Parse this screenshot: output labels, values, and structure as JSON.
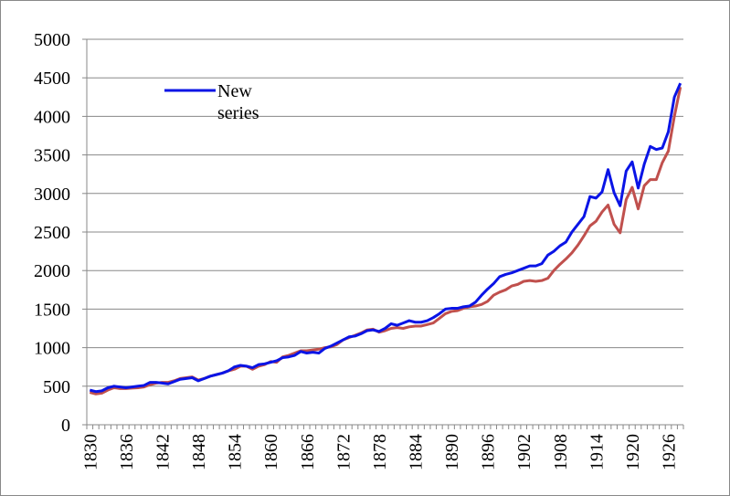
{
  "chart_data": {
    "type": "line",
    "categories": [
      "1830",
      null,
      null,
      null,
      null,
      null,
      "1836",
      null,
      null,
      null,
      null,
      null,
      "1842",
      null,
      null,
      null,
      null,
      null,
      "1848",
      null,
      null,
      null,
      null,
      null,
      "1854",
      null,
      null,
      null,
      null,
      null,
      "1860",
      null,
      null,
      null,
      null,
      null,
      "1866",
      null,
      null,
      null,
      null,
      null,
      "1872",
      null,
      null,
      null,
      null,
      null,
      "1878",
      null,
      null,
      null,
      null,
      null,
      "1884",
      null,
      null,
      null,
      null,
      null,
      "1890",
      null,
      null,
      null,
      null,
      null,
      "1896",
      null,
      null,
      null,
      null,
      null,
      "1902",
      null,
      null,
      null,
      null,
      null,
      "1908",
      null,
      null,
      null,
      null,
      null,
      "1914",
      null,
      null,
      null,
      null,
      null,
      "1920",
      null,
      null,
      null,
      null,
      null,
      "1926",
      null,
      null
    ],
    "series": [
      {
        "name": "New series",
        "color": "#0a14e6",
        "values": [
          450,
          430,
          440,
          480,
          500,
          490,
          480,
          490,
          500,
          510,
          550,
          550,
          540,
          530,
          560,
          590,
          600,
          610,
          570,
          600,
          630,
          650,
          670,
          700,
          750,
          770,
          760,
          740,
          780,
          790,
          810,
          830,
          870,
          880,
          900,
          950,
          930,
          940,
          930,
          990,
          1020,
          1060,
          1100,
          1140,
          1150,
          1180,
          1220,
          1230,
          1210,
          1250,
          1310,
          1290,
          1320,
          1350,
          1330,
          1330,
          1350,
          1390,
          1440,
          1500,
          1510,
          1510,
          1530,
          1540,
          1590,
          1680,
          1760,
          1830,
          1920,
          1950,
          1970,
          2000,
          2030,
          2060,
          2060,
          2090,
          2200,
          2250,
          2320,
          2370,
          2500,
          2600,
          2700,
          2960,
          2940,
          3020,
          3310,
          3010,
          2840,
          3290,
          3410,
          3070,
          3380,
          3610,
          3570,
          3590,
          3800,
          4250,
          4430
        ]
      },
      {
        "color": "#c0504d",
        "values": [
          420,
          400,
          410,
          450,
          480,
          470,
          470,
          475,
          480,
          490,
          520,
          540,
          550,
          550,
          570,
          600,
          610,
          620,
          580,
          600,
          630,
          650,
          670,
          700,
          720,
          760,
          760,
          720,
          760,
          780,
          820,
          810,
          880,
          900,
          930,
          960,
          960,
          970,
          980,
          1000,
          1010,
          1040,
          1100,
          1130,
          1160,
          1190,
          1230,
          1240,
          1200,
          1220,
          1250,
          1260,
          1250,
          1270,
          1280,
          1280,
          1300,
          1320,
          1380,
          1440,
          1470,
          1480,
          1510,
          1530,
          1540,
          1560,
          1600,
          1680,
          1720,
          1750,
          1800,
          1820,
          1860,
          1870,
          1860,
          1870,
          1900,
          2000,
          2080,
          2150,
          2230,
          2330,
          2450,
          2580,
          2640,
          2760,
          2850,
          2600,
          2490,
          2920,
          3080,
          2800,
          3100,
          3180,
          3180,
          3400,
          3550,
          4000,
          4380
        ]
      }
    ],
    "ylim": [
      0,
      5000
    ],
    "yticks": [
      0,
      500,
      1000,
      1500,
      2000,
      2500,
      3000,
      3500,
      4000,
      4500,
      5000
    ],
    "grid": true
  }
}
